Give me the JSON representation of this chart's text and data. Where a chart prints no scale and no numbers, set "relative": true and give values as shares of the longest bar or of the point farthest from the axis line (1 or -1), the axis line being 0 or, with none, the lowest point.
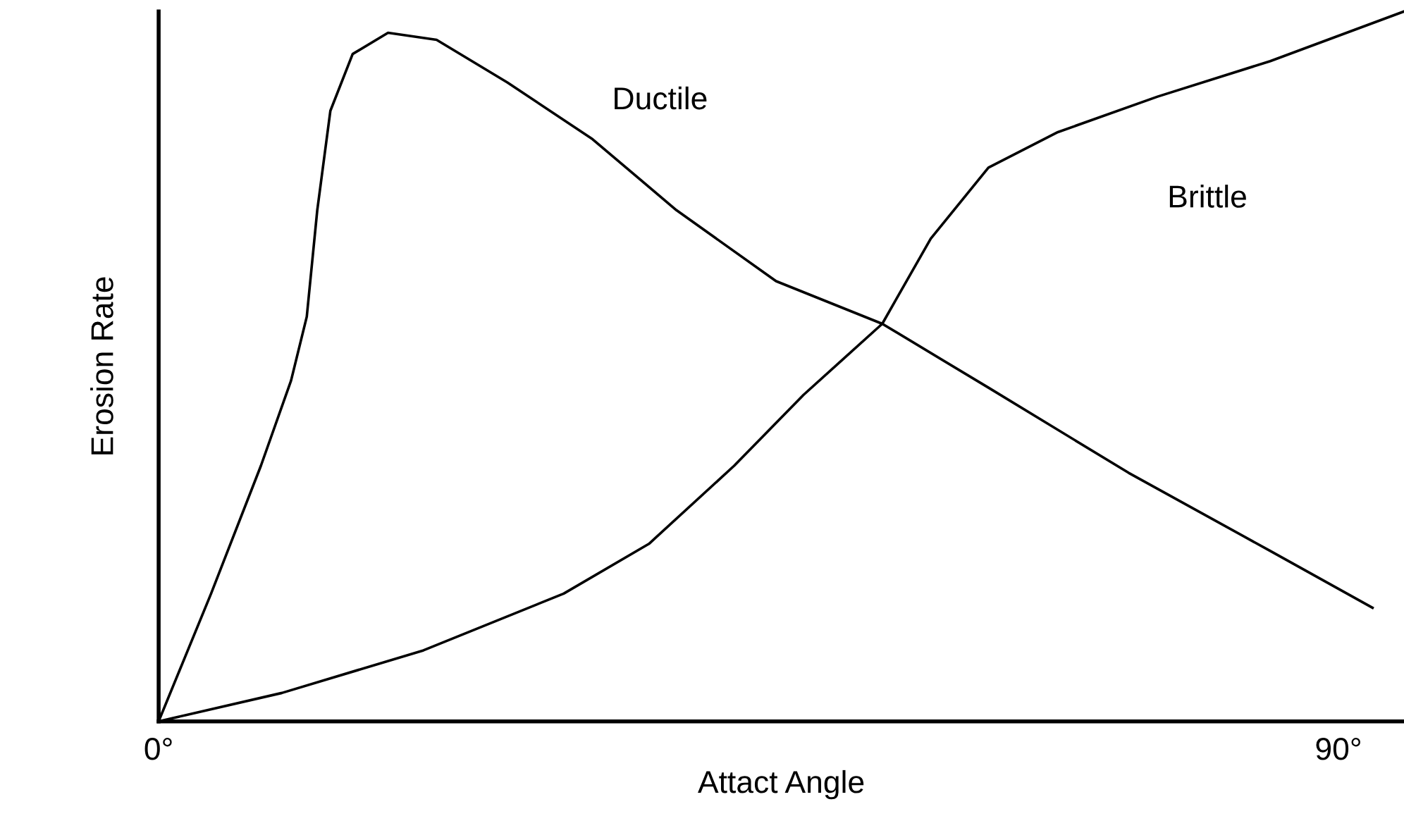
{
  "chart_data": {
    "type": "line",
    "relative": true,
    "xlabel": "Attact Angle",
    "ylabel": "Erosion Rate",
    "xlim": [
      0,
      95
    ],
    "xticks": [
      {
        "value": 0,
        "label": "0°"
      },
      {
        "value": 90,
        "label": "90°"
      }
    ],
    "tick_labels": "x",
    "grid": false,
    "legend": false,
    "series": [
      {
        "name": "Ductile",
        "color": "#000000",
        "x": [
          0,
          4.0,
          7.8,
          10.1,
          11.3,
          12.1,
          13.1,
          14.8,
          17.5,
          21.2,
          26.6,
          33.1,
          39.5,
          47.1,
          55.2,
          63.3,
          74.0,
          84.8,
          92.6
        ],
        "values": [
          0,
          0.18,
          0.36,
          0.48,
          0.57,
          0.72,
          0.86,
          0.94,
          0.97,
          0.96,
          0.9,
          0.82,
          0.72,
          0.62,
          0.56,
          0.47,
          0.35,
          0.24,
          0.16
        ]
      },
      {
        "name": "Brittle",
        "color": "#000000",
        "x": [
          0,
          9.4,
          20.2,
          30.9,
          37.4,
          43.9,
          49.2,
          55.2,
          58.9,
          63.3,
          68.6,
          76.2,
          84.8,
          95
        ],
        "values": [
          0,
          0.04,
          0.1,
          0.18,
          0.25,
          0.36,
          0.46,
          0.56,
          0.68,
          0.78,
          0.83,
          0.88,
          0.93,
          1.0
        ]
      }
    ]
  }
}
